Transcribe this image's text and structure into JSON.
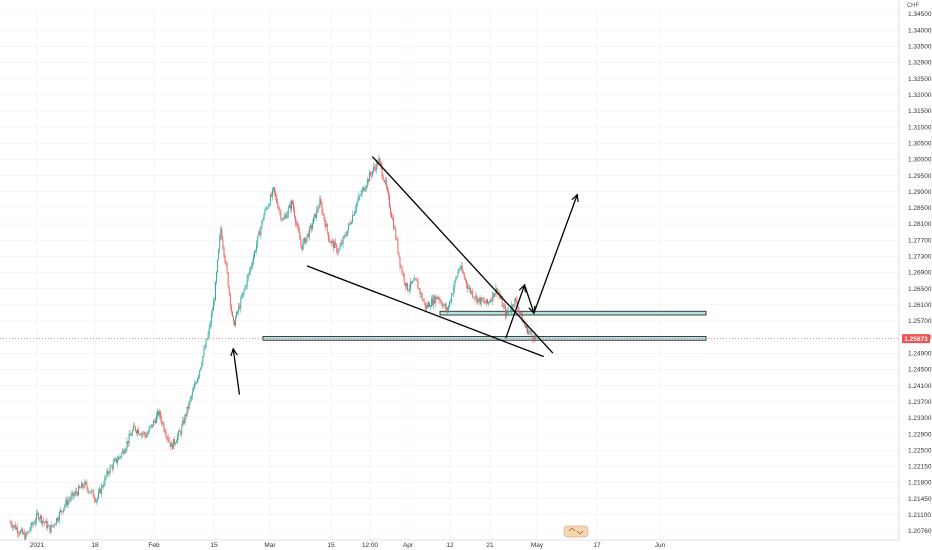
{
  "colors": {
    "up": "#26a69a",
    "down": "#ef5350",
    "zone_fill": "#b2e5e0",
    "zone_stroke": "#1a1a1a",
    "drawing": "#000000",
    "price_label_bg": "#ef5350",
    "grid": "#f0f0f0",
    "event_badge": "#f7d7b3"
  },
  "chart_data": {
    "type": "candlestick",
    "symbol_currency": "CHF",
    "ylim": [
      1.2044,
      1.3473
    ],
    "y_ticks": [
      "1.34500",
      "1.34000",
      "1.33500",
      "1.32900",
      "1.32500",
      "1.32000",
      "1.31500",
      "1.31000",
      "1.30500",
      "1.30000",
      "1.29500",
      "1.29000",
      "1.28500",
      "1.28100",
      "1.27700",
      "1.27300",
      "1.26900",
      "1.26500",
      "1.26100",
      "1.25700",
      "1.25300",
      "1.24900",
      "1.24500",
      "1.24100",
      "1.23700",
      "1.23300",
      "1.22900",
      "1.22500",
      "1.22150",
      "1.21800",
      "1.21450",
      "1.21100",
      "1.20760"
    ],
    "x_ticks": [
      "2021",
      "18",
      "Feb",
      "15",
      "Mar",
      "15",
      "12:00",
      "Apr",
      "12",
      "21",
      "May",
      "17",
      "Jun"
    ],
    "x_tick_order": [
      0,
      1,
      2,
      3,
      4,
      5,
      6,
      7,
      8,
      9,
      10,
      11,
      12
    ],
    "last_price": "1.25873",
    "last_price_value": 1.25873,
    "grid": true,
    "price_path": [
      [
        0,
        1.21
      ],
      [
        5,
        1.206
      ],
      [
        9,
        1.212
      ],
      [
        13,
        1.208
      ],
      [
        18,
        1.215
      ],
      [
        24,
        1.22
      ],
      [
        28,
        1.216
      ],
      [
        32,
        1.224
      ],
      [
        36,
        1.228
      ],
      [
        40,
        1.235
      ],
      [
        44,
        1.233
      ],
      [
        48,
        1.239
      ],
      [
        52,
        1.23
      ],
      [
        55,
        1.234
      ],
      [
        58,
        1.242
      ],
      [
        61,
        1.25
      ],
      [
        64,
        1.26
      ],
      [
        66,
        1.27
      ],
      [
        68,
        1.288
      ],
      [
        70,
        1.276
      ],
      [
        72,
        1.262
      ],
      [
        75,
        1.27
      ],
      [
        79,
        1.282
      ],
      [
        82,
        1.292
      ],
      [
        85,
        1.298
      ],
      [
        88,
        1.29
      ],
      [
        91,
        1.295
      ],
      [
        94,
        1.283
      ],
      [
        97,
        1.288
      ],
      [
        100,
        1.295
      ],
      [
        103,
        1.285
      ],
      [
        106,
        1.282
      ],
      [
        109,
        1.288
      ],
      [
        112,
        1.295
      ],
      [
        116,
        1.302
      ],
      [
        119,
        1.306
      ],
      [
        121,
        1.3
      ],
      [
        124,
        1.288
      ],
      [
        126,
        1.278
      ],
      [
        128,
        1.272
      ],
      [
        131,
        1.274
      ],
      [
        134,
        1.267
      ],
      [
        138,
        1.27
      ],
      [
        141,
        1.266
      ],
      [
        145,
        1.278
      ],
      [
        148,
        1.272
      ],
      [
        151,
        1.269
      ],
      [
        154,
        1.268
      ],
      [
        157,
        1.272
      ],
      [
        160,
        1.265
      ],
      [
        163,
        1.269
      ],
      [
        166,
        1.262
      ],
      [
        168,
        1.26
      ],
      [
        170,
        1.2587
      ]
    ],
    "annotations": {
      "support_zone": [
        1.2583,
        1.2593
      ],
      "resistance_zone": [
        1.265,
        1.266
      ],
      "falling_wedge_upper": [
        [
          117,
          1.307
        ],
        [
          175,
          1.255
        ]
      ],
      "falling_wedge_lower": [
        [
          96,
          1.278
        ],
        [
          172,
          1.254
        ]
      ],
      "arrow_up_from_support": [
        [
          74,
          1.244
        ],
        [
          72,
          1.256
        ]
      ],
      "projected_path": [
        [
          160,
          1.259
        ],
        [
          166,
          1.273
        ],
        [
          169,
          1.2655
        ],
        [
          183,
          1.297
        ]
      ]
    }
  }
}
